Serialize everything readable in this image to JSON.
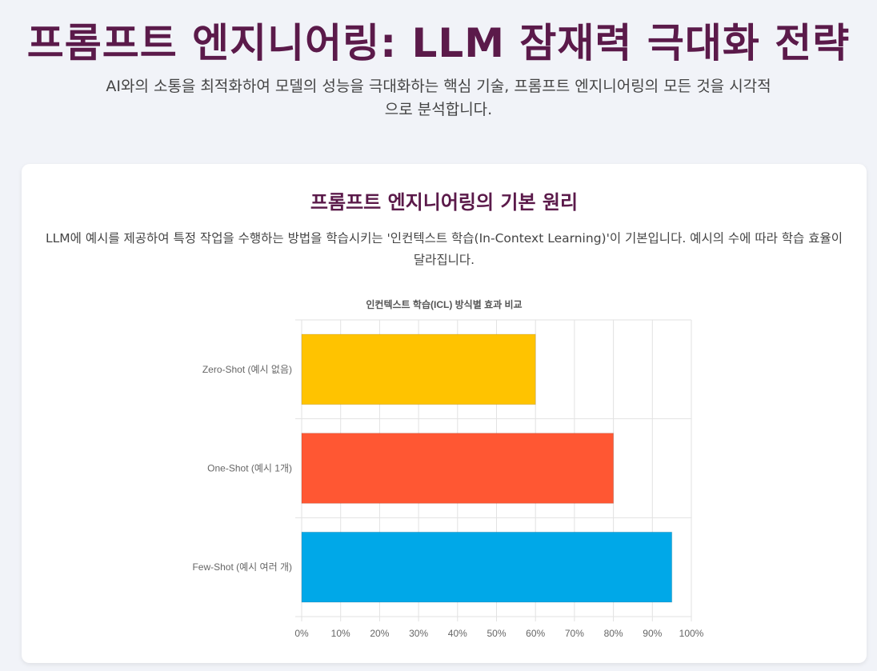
{
  "header": {
    "title": "프롬프트 엔지니어링: LLM 잠재력 극대화 전략",
    "subtitle": "AI와의 소통을 최적화하여 모델의 성능을 극대화하는 핵심 기술, 프롬프트 엔지니어링의 모든 것을 시각적으로 분석합니다."
  },
  "section": {
    "title": "프롬프트 엔지니어링의 기본 원리",
    "description": "LLM에 예시를 제공하여 특정 작업을 수행하는 방법을 학습시키는 '인컨텍스트 학습(In-Context Learning)'이 기본입니다. 예시의 수에 따라 학습 효율이 달라집니다."
  },
  "chart_data": {
    "type": "bar",
    "orientation": "horizontal",
    "title": "인컨텍스트 학습(ICL) 방식별 효과 비교",
    "categories": [
      "Zero-Shot (예시 없음)",
      "One-Shot (예시 1개)",
      "Few-Shot (예시 여러 개)"
    ],
    "values": [
      60,
      80,
      95
    ],
    "colors": [
      "#ffc300",
      "#ff5733",
      "#00a8e8"
    ],
    "xlim": [
      0,
      100
    ],
    "xticks": [
      0,
      10,
      20,
      30,
      40,
      50,
      60,
      70,
      80,
      90,
      100
    ],
    "tick_suffix": "%",
    "grid": true,
    "legend": "none"
  }
}
